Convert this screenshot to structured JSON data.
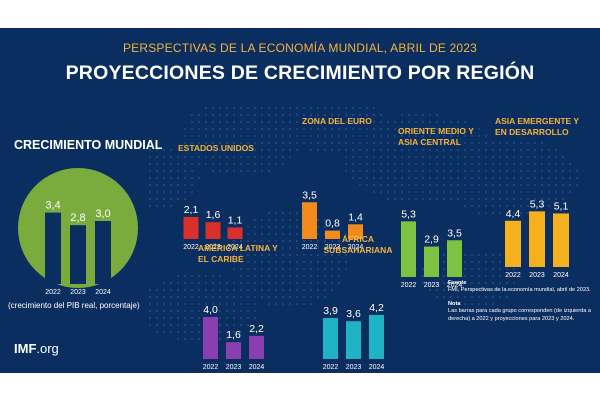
{
  "header": {
    "supertitle": "PERSPECTIVAS DE LA ECONOMÍA MUNDIAL, ABRIL DE 2023",
    "title": "PROYECCIONES DE CRECIMIENTO POR REGIÓN"
  },
  "world": {
    "label": "CRECIMIENTO MUNDIAL",
    "note": "(crecimiento del PIB real, porcentaje)"
  },
  "logo": {
    "bold": "IMF",
    "rest": ".org"
  },
  "footer": {
    "source_heading": "Fuente",
    "source_text": "FMI, Perspectivas de la economía mundial, abril de 2023.",
    "note_heading": "Nota",
    "note_text": "Las barras para cada grupo corresponden (de izquierda a derecha) a 2022 y proyecciones para 2023 y 2024."
  },
  "colors": {
    "background": "#0b2e60",
    "world_circle": "#7aab3d",
    "world_bars": "#0b2e60",
    "estados_unidos": "#d9302b",
    "zona_del_euro": "#f28a1e",
    "oriente_medio": "#7dc242",
    "asia": "#f5b01d",
    "america_latina": "#8a3fb0",
    "africa": "#1fb3c6",
    "label_gold": "#f3b23a"
  },
  "chart_data": [
    {
      "type": "bar",
      "title": "CRECIMIENTO MUNDIAL",
      "categories": [
        "2022",
        "2023",
        "2024"
      ],
      "values": [
        3.4,
        2.8,
        3.0
      ],
      "labels": [
        "3,4",
        "2,8",
        "3,0"
      ]
    },
    {
      "type": "bar",
      "title": "ESTADOS UNIDOS",
      "categories": [
        "2022",
        "2023",
        "2024"
      ],
      "values": [
        2.1,
        1.6,
        1.1
      ],
      "labels": [
        "2,1",
        "1,6",
        "1,1"
      ]
    },
    {
      "type": "bar",
      "title": "ZONA DEL EURO",
      "categories": [
        "2022",
        "2023",
        "2024"
      ],
      "values": [
        3.5,
        0.8,
        1.4
      ],
      "labels": [
        "3,5",
        "0,8",
        "1,4"
      ]
    },
    {
      "type": "bar",
      "title": "ORIENTE MEDIO Y ASIA CENTRAL",
      "categories": [
        "2022",
        "2023",
        "2024"
      ],
      "values": [
        5.3,
        2.9,
        3.5
      ],
      "labels": [
        "5,3",
        "2,9",
        "3,5"
      ]
    },
    {
      "type": "bar",
      "title": "ASIA EMERGENTE Y EN DESARROLLO",
      "categories": [
        "2022",
        "2023",
        "2024"
      ],
      "values": [
        4.4,
        5.3,
        5.1
      ],
      "labels": [
        "4,4",
        "5,3",
        "5,1"
      ]
    },
    {
      "type": "bar",
      "title": "AMÉRICA LATINA Y EL CARIBE",
      "categories": [
        "2022",
        "2023",
        "2024"
      ],
      "values": [
        4.0,
        1.6,
        2.2
      ],
      "labels": [
        "4,0",
        "1,6",
        "2,2"
      ]
    },
    {
      "type": "bar",
      "title": "ÁFRICA SUBSAHARIANA",
      "categories": [
        "2022",
        "2023",
        "2024"
      ],
      "values": [
        3.9,
        3.6,
        4.2
      ],
      "labels": [
        "3,9",
        "3,6",
        "4,2"
      ]
    }
  ]
}
